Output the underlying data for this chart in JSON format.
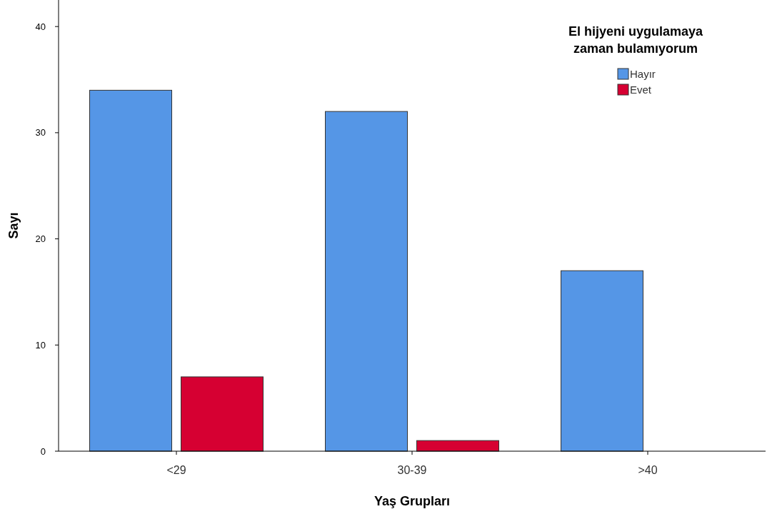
{
  "chart_data": {
    "type": "bar",
    "xlabel": "Yaş Grupları",
    "ylabel": "Sayı",
    "legend_title": "El hijyeni uygulamaya\nzaman bulamıyorum",
    "categories": [
      "<29",
      "30-39",
      ">40"
    ],
    "series": [
      {
        "name": "Hayır",
        "color": "#5596e6",
        "values": [
          34,
          32,
          17
        ]
      },
      {
        "name": "Evet",
        "color": "#d60032",
        "values": [
          7,
          1,
          0
        ]
      }
    ],
    "ylim": [
      0,
      42.5
    ],
    "yticks": [
      0,
      10,
      20,
      30,
      40
    ],
    "grid": false,
    "legend": "top right"
  }
}
